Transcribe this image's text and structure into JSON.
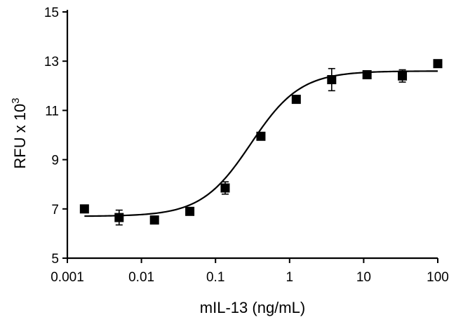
{
  "chart_data": {
    "type": "scatter",
    "xlabel": "mIL-13 (ng/mL)",
    "ylabel_base": "RFU x 10",
    "ylabel_exponent": "3",
    "xscale": "log",
    "xlim": [
      0.001,
      100
    ],
    "ylim": [
      5,
      15
    ],
    "xticks": [
      0.001,
      0.01,
      0.1,
      1,
      10,
      100
    ],
    "xtick_labels": [
      "0.001",
      "0.01",
      "0.1",
      "1",
      "10",
      "100"
    ],
    "yticks": [
      5,
      7,
      9,
      11,
      13,
      15
    ],
    "ytick_labels": [
      "5",
      "7",
      "9",
      "11",
      "13",
      "15"
    ],
    "grid": false,
    "series": [
      {
        "marker": "square",
        "color": "#000000",
        "points": [
          {
            "x": 0.0017,
            "y": 7.0,
            "err": 0
          },
          {
            "x": 0.005,
            "y": 6.65,
            "err": 0.3
          },
          {
            "x": 0.015,
            "y": 6.55,
            "err": 0
          },
          {
            "x": 0.045,
            "y": 6.9,
            "err": 0
          },
          {
            "x": 0.135,
            "y": 7.85,
            "err": 0.25
          },
          {
            "x": 0.41,
            "y": 9.95,
            "err": 0
          },
          {
            "x": 1.23,
            "y": 11.45,
            "err": 0
          },
          {
            "x": 3.7,
            "y": 12.25,
            "err": 0.45
          },
          {
            "x": 11.1,
            "y": 12.45,
            "err": 0
          },
          {
            "x": 33.3,
            "y": 12.4,
            "err": 0.25
          },
          {
            "x": 100,
            "y": 12.9,
            "err": 0
          }
        ]
      }
    ],
    "fit": {
      "model": "4PL",
      "bottom": 6.7,
      "top": 12.6,
      "ec50": 0.3,
      "hill": 1.3,
      "x_range": [
        0.0017,
        100
      ]
    }
  }
}
